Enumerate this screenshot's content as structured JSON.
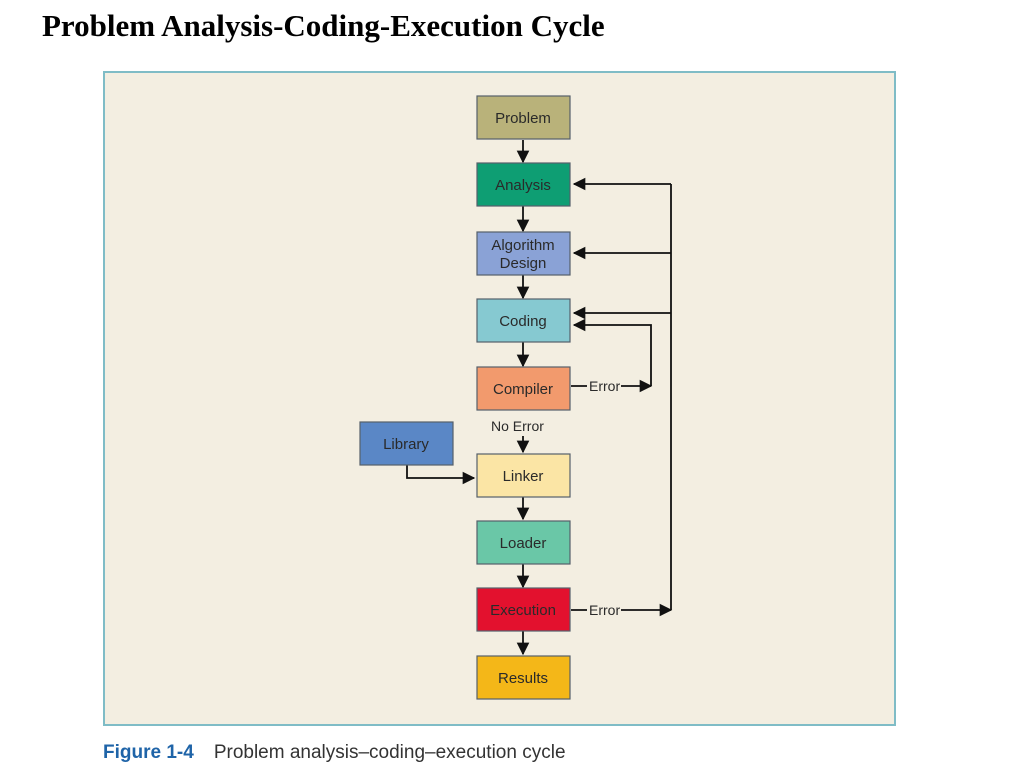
{
  "title": "Problem Analysis-Coding-Execution Cycle",
  "nodes": {
    "problem": {
      "label": "Problem",
      "color": "#b9b27a"
    },
    "analysis": {
      "label": "Analysis",
      "color": "#0e9e73"
    },
    "algorithm": {
      "label1": "Algorithm",
      "label2": "Design",
      "color": "#8aa2d6"
    },
    "coding": {
      "label": "Coding",
      "color": "#86c9d1"
    },
    "compiler": {
      "label": "Compiler",
      "color": "#f29a6d"
    },
    "library": {
      "label": "Library",
      "color": "#5a87c6"
    },
    "linker": {
      "label": "Linker",
      "color": "#fbe5a5"
    },
    "loader": {
      "label": "Loader",
      "color": "#6ac7a7"
    },
    "execution": {
      "label": "Execution",
      "color": "#e3112e"
    },
    "results": {
      "label": "Results",
      "color": "#f4b718"
    }
  },
  "edge_labels": {
    "compiler_error": "Error",
    "no_error": "No Error",
    "execution_error": "Error"
  },
  "caption": {
    "number": "Figure 1-4",
    "text": "Problem analysis–coding–execution cycle"
  }
}
